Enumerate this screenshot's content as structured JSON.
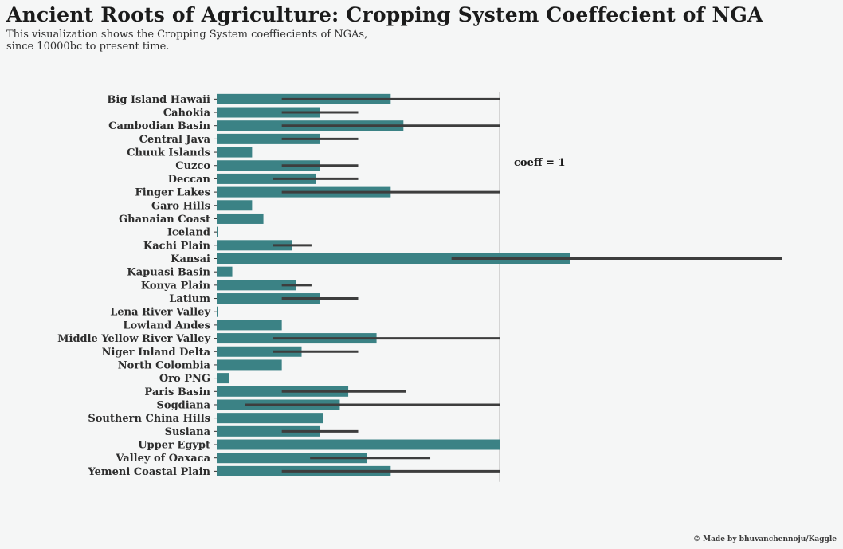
{
  "header": {
    "title": "Ancient Roots of Agriculture: Cropping System Coeffecient of NGA",
    "subtitle_line1": "This visualization shows the Cropping System coeffiecients of NGAs,",
    "subtitle_line2": "since 10000bc to present time."
  },
  "footer": {
    "credit": "© Made by bhuvanchennoju/Kaggle"
  },
  "colors": {
    "bar": "#3b8285",
    "error_bar": "#3d3d3d",
    "reference_line": "#b3b3b3",
    "background": "#f5f6f6"
  },
  "chart_data": {
    "type": "bar",
    "orientation": "horizontal",
    "categories": [
      "Big Island Hawaii",
      "Cahokia",
      "Cambodian Basin",
      "Central Java",
      "Chuuk Islands",
      "Cuzco",
      "Deccan",
      "Finger Lakes",
      "Garo Hills",
      "Ghanaian Coast",
      "Iceland",
      "Kachi Plain",
      "Kansai",
      "Kapuasi Basin",
      "Konya Plain",
      "Latium",
      "Lena River Valley",
      "Lowland Andes",
      "Middle Yellow River Valley",
      "Niger Inland Delta",
      "North Colombia",
      "Oro PNG",
      "Paris Basin",
      "Sogdiana",
      "Southern China Hills",
      "Susiana",
      "Upper Egypt",
      "Valley of Oaxaca",
      "Yemeni Coastal Plain"
    ],
    "values": [
      0.615,
      0.365,
      0.66,
      0.365,
      0.125,
      0.365,
      0.35,
      0.615,
      0.125,
      0.165,
      0.003,
      0.265,
      1.25,
      0.055,
      0.28,
      0.365,
      0.003,
      0.23,
      0.565,
      0.3,
      0.23,
      0.045,
      0.465,
      0.435,
      0.375,
      0.365,
      1.0,
      0.53,
      0.615
    ],
    "error_bars": [
      [
        0.23,
        1.0
      ],
      [
        0.23,
        0.5
      ],
      [
        0.23,
        1.0
      ],
      [
        0.23,
        0.5
      ],
      null,
      [
        0.23,
        0.5
      ],
      [
        0.2,
        0.5
      ],
      [
        0.23,
        1.0
      ],
      null,
      null,
      null,
      [
        0.2,
        0.335
      ],
      [
        0.83,
        2.0
      ],
      null,
      [
        0.23,
        0.335
      ],
      [
        0.23,
        0.5
      ],
      null,
      null,
      [
        0.2,
        1.0
      ],
      [
        0.2,
        0.5
      ],
      null,
      null,
      [
        0.23,
        0.67
      ],
      [
        0.1,
        1.0
      ],
      null,
      [
        0.23,
        0.5
      ],
      null,
      [
        0.33,
        0.755
      ],
      [
        0.23,
        1.0
      ]
    ],
    "xlim": [
      0,
      2.1
    ],
    "reference_line": 1,
    "annotation": "coeff = 1",
    "grid": false
  }
}
